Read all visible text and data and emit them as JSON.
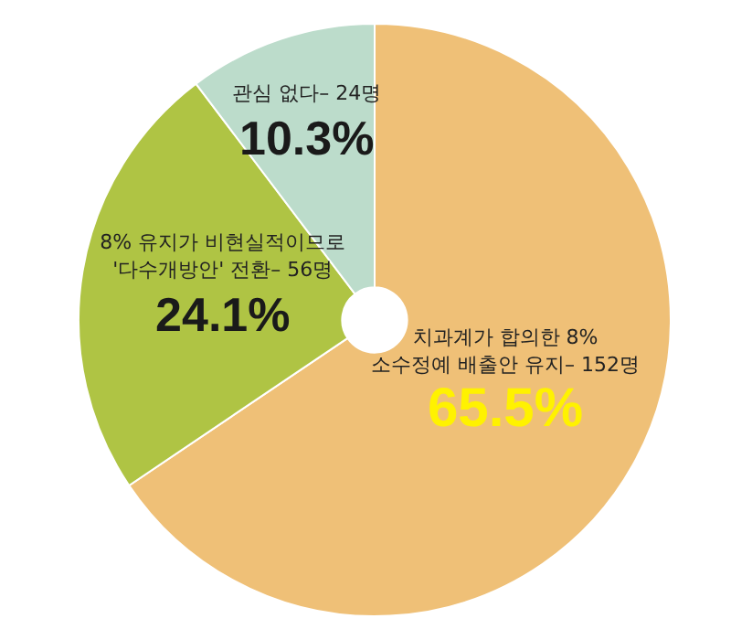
{
  "chart_data": {
    "type": "pie",
    "categories": [
      "치과계가 합의한 8%\n소수정예 배출안 유지– 152명",
      "8% 유지가 비현실적이므로\n'다수개방안' 전환– 56명",
      "관심 없다– 24명"
    ],
    "values": [
      65.5,
      24.1,
      10.3
    ],
    "colors": [
      "#efc077",
      "#afc444",
      "#bcdccb"
    ],
    "value_labels": [
      "65.5%",
      "24.1%",
      "10.3%"
    ],
    "legend": false
  }
}
